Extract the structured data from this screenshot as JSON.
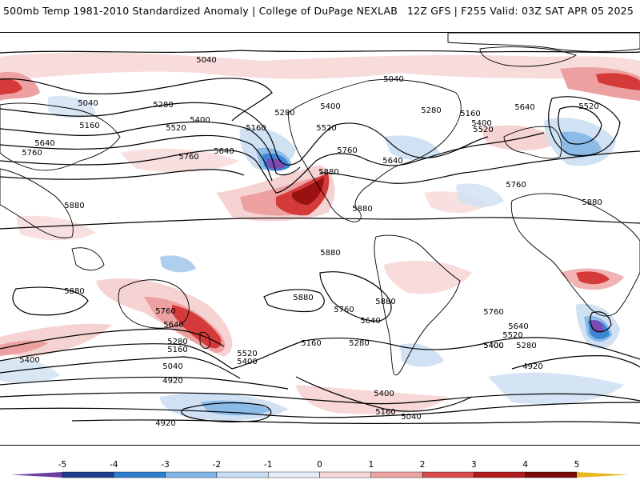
{
  "header": {
    "left_title": "500mb Temp 1981-2010 Standardized Anomaly | College of DuPage NEXLAB",
    "right_title": "12Z GFS | F255 Valid: 03Z SAT APR 05 2025"
  },
  "contour_labels": [
    "5040",
    "5160",
    "5280",
    "5400",
    "5520",
    "5640",
    "5760",
    "5880",
    "4920"
  ],
  "map_labels": [
    {
      "t": "5040"
    },
    {
      "t": "5040"
    },
    {
      "t": "5160"
    },
    {
      "t": "5280"
    },
    {
      "t": "5400"
    },
    {
      "t": "5520"
    },
    {
      "t": "5640"
    },
    {
      "t": "5640"
    },
    {
      "t": "5760"
    },
    {
      "t": "5760"
    },
    {
      "t": "5160"
    },
    {
      "t": "5280"
    },
    {
      "t": "5400"
    },
    {
      "t": "5520"
    },
    {
      "t": "5640"
    },
    {
      "t": "5760"
    },
    {
      "t": "5880"
    },
    {
      "t": "5040"
    },
    {
      "t": "5280"
    },
    {
      "t": "5160"
    },
    {
      "t": "5400"
    },
    {
      "t": "5520"
    },
    {
      "t": "5640"
    },
    {
      "t": "5520"
    },
    {
      "t": "5760"
    },
    {
      "t": "5880"
    },
    {
      "t": "5880"
    },
    {
      "t": "5880"
    },
    {
      "t": "5880"
    },
    {
      "t": "5880"
    },
    {
      "t": "5880"
    },
    {
      "t": "5760"
    },
    {
      "t": "5640"
    },
    {
      "t": "5880"
    },
    {
      "t": "5760"
    },
    {
      "t": "5640"
    },
    {
      "t": "5280"
    },
    {
      "t": "5160"
    },
    {
      "t": "5520"
    },
    {
      "t": "5400"
    },
    {
      "t": "5160"
    },
    {
      "t": "5280"
    },
    {
      "t": "5400"
    },
    {
      "t": "5040"
    },
    {
      "t": "4920"
    },
    {
      "t": "4920"
    },
    {
      "t": "5760"
    },
    {
      "t": "5640"
    },
    {
      "t": "5520"
    },
    {
      "t": "5400"
    },
    {
      "t": "5280"
    },
    {
      "t": "4920"
    },
    {
      "t": "5160"
    },
    {
      "t": "5040"
    },
    {
      "t": "5400"
    },
    {
      "t": "5400"
    }
  ],
  "legend": {
    "ticks": [
      "-5",
      "-4",
      "-3",
      "-2",
      "-1",
      "0",
      "1",
      "2",
      "3",
      "4",
      "5"
    ],
    "colors": [
      "#6a3fa0",
      "#1f3f8f",
      "#2f7fd0",
      "#7fb4e6",
      "#c9ddf2",
      "#e8eef8",
      "#f7d8d8",
      "#eea4a4",
      "#d94a4a",
      "#b01c1c",
      "#7a0a0a",
      "#e8b820"
    ]
  },
  "colors": {
    "contour": "#000000",
    "warm_light": "#f6d3d3",
    "warm_mid": "#eda0a0",
    "warm_strong": "#d53a3a",
    "warm_extreme": "#9a1111",
    "cold_light": "#cfe1f3",
    "cold_mid": "#8dbbe8",
    "cold_strong": "#3c86d6",
    "cold_extreme": "#7a4bb3"
  }
}
